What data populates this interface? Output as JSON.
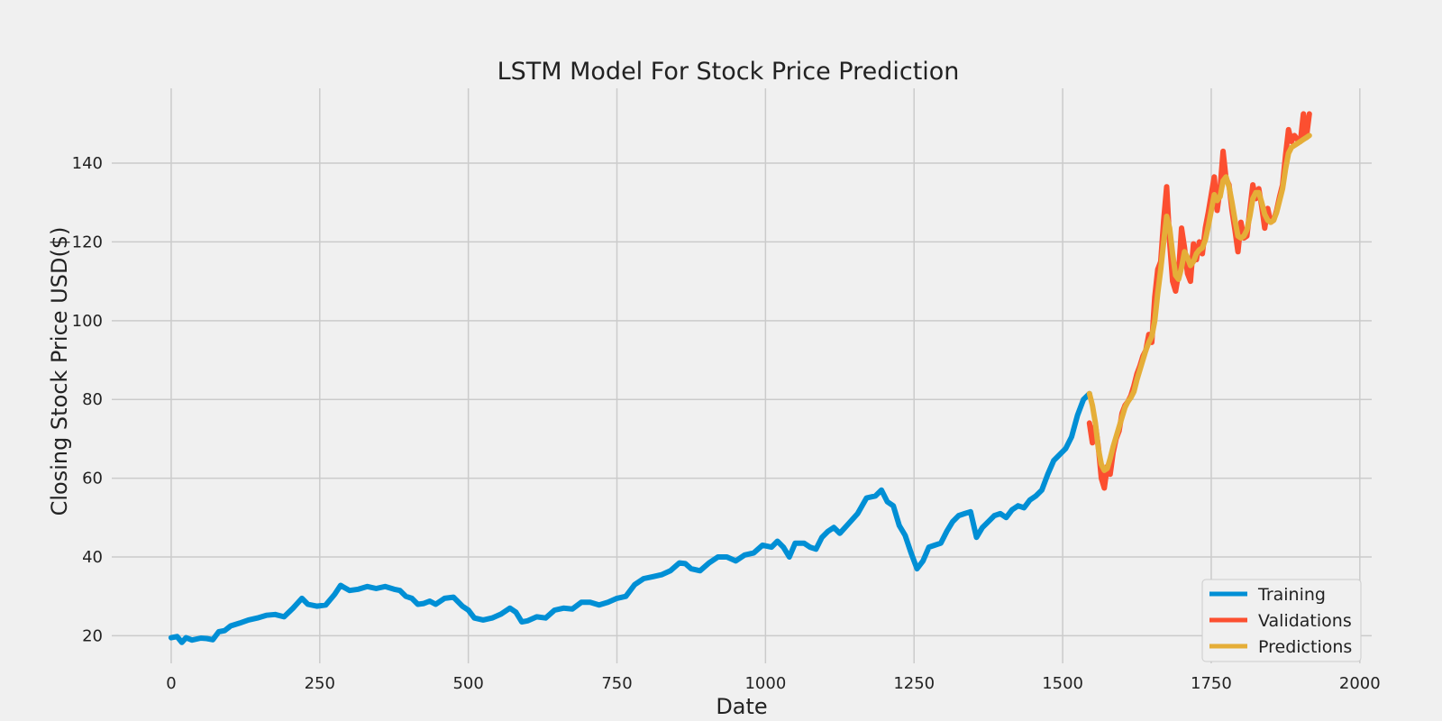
{
  "chart_data": {
    "type": "line",
    "title": "LSTM Model For Stock Price Prediction",
    "xlabel": "Date",
    "ylabel": "Closing Stock Price USD($)",
    "xlim": [
      -100,
      2020
    ],
    "ylim": [
      13,
      159
    ],
    "xticks": [
      0,
      250,
      500,
      750,
      1000,
      1250,
      1500,
      1750,
      2000
    ],
    "yticks": [
      20,
      40,
      60,
      80,
      100,
      120,
      140
    ],
    "grid": true,
    "legend_position": "lower-right",
    "series": [
      {
        "name": "Training",
        "color": "#008fd5",
        "points": [
          [
            0,
            19.5
          ],
          [
            10,
            19.8
          ],
          [
            18,
            18.3
          ],
          [
            25,
            19.5
          ],
          [
            35,
            18.9
          ],
          [
            50,
            19.4
          ],
          [
            60,
            19.3
          ],
          [
            70,
            19.0
          ],
          [
            80,
            21.0
          ],
          [
            90,
            21.3
          ],
          [
            100,
            22.5
          ],
          [
            115,
            23.2
          ],
          [
            130,
            24.0
          ],
          [
            145,
            24.5
          ],
          [
            160,
            25.2
          ],
          [
            175,
            25.4
          ],
          [
            190,
            24.8
          ],
          [
            205,
            27.0
          ],
          [
            220,
            29.5
          ],
          [
            230,
            28.0
          ],
          [
            245,
            27.5
          ],
          [
            260,
            27.8
          ],
          [
            275,
            30.5
          ],
          [
            285,
            32.8
          ],
          [
            300,
            31.5
          ],
          [
            315,
            31.8
          ],
          [
            330,
            32.5
          ],
          [
            345,
            32.0
          ],
          [
            360,
            32.5
          ],
          [
            375,
            31.8
          ],
          [
            385,
            31.5
          ],
          [
            395,
            30.0
          ],
          [
            405,
            29.5
          ],
          [
            415,
            28.0
          ],
          [
            425,
            28.2
          ],
          [
            435,
            28.8
          ],
          [
            445,
            28.0
          ],
          [
            460,
            29.5
          ],
          [
            475,
            29.8
          ],
          [
            490,
            27.5
          ],
          [
            500,
            26.5
          ],
          [
            510,
            24.5
          ],
          [
            525,
            24.0
          ],
          [
            540,
            24.5
          ],
          [
            555,
            25.5
          ],
          [
            570,
            27.0
          ],
          [
            580,
            26.0
          ],
          [
            590,
            23.5
          ],
          [
            600,
            23.8
          ],
          [
            615,
            24.8
          ],
          [
            630,
            24.5
          ],
          [
            645,
            26.5
          ],
          [
            660,
            27.0
          ],
          [
            675,
            26.8
          ],
          [
            690,
            28.5
          ],
          [
            705,
            28.5
          ],
          [
            720,
            27.8
          ],
          [
            735,
            28.5
          ],
          [
            750,
            29.5
          ],
          [
            765,
            30.0
          ],
          [
            780,
            33.0
          ],
          [
            795,
            34.5
          ],
          [
            810,
            35.0
          ],
          [
            825,
            35.5
          ],
          [
            840,
            36.5
          ],
          [
            855,
            38.5
          ],
          [
            865,
            38.3
          ],
          [
            875,
            37.0
          ],
          [
            890,
            36.5
          ],
          [
            905,
            38.5
          ],
          [
            920,
            40.0
          ],
          [
            935,
            40.0
          ],
          [
            950,
            39.0
          ],
          [
            965,
            40.5
          ],
          [
            980,
            41.0
          ],
          [
            995,
            43.0
          ],
          [
            1010,
            42.5
          ],
          [
            1020,
            44.0
          ],
          [
            1030,
            42.5
          ],
          [
            1040,
            40.0
          ],
          [
            1050,
            43.5
          ],
          [
            1065,
            43.5
          ],
          [
            1075,
            42.5
          ],
          [
            1085,
            42.0
          ],
          [
            1095,
            45.0
          ],
          [
            1105,
            46.5
          ],
          [
            1115,
            47.5
          ],
          [
            1125,
            46.0
          ],
          [
            1140,
            48.5
          ],
          [
            1155,
            51.0
          ],
          [
            1170,
            55.0
          ],
          [
            1185,
            55.5
          ],
          [
            1195,
            57.0
          ],
          [
            1205,
            54.0
          ],
          [
            1215,
            53.0
          ],
          [
            1225,
            48.0
          ],
          [
            1235,
            45.5
          ],
          [
            1245,
            41.0
          ],
          [
            1255,
            37.0
          ],
          [
            1265,
            39.0
          ],
          [
            1275,
            42.5
          ],
          [
            1285,
            43.0
          ],
          [
            1295,
            43.5
          ],
          [
            1305,
            46.5
          ],
          [
            1315,
            49.0
          ],
          [
            1325,
            50.5
          ],
          [
            1335,
            51.0
          ],
          [
            1345,
            51.5
          ],
          [
            1355,
            45.0
          ],
          [
            1365,
            47.5
          ],
          [
            1375,
            49.0
          ],
          [
            1385,
            50.5
          ],
          [
            1395,
            51.0
          ],
          [
            1405,
            50.0
          ],
          [
            1415,
            52.0
          ],
          [
            1425,
            53.0
          ],
          [
            1435,
            52.5
          ],
          [
            1445,
            54.5
          ],
          [
            1455,
            55.5
          ],
          [
            1465,
            57.0
          ],
          [
            1475,
            61.0
          ],
          [
            1485,
            64.5
          ],
          [
            1495,
            66.0
          ],
          [
            1505,
            67.5
          ],
          [
            1515,
            70.5
          ],
          [
            1525,
            76.0
          ],
          [
            1535,
            80.0
          ],
          [
            1545,
            81.5
          ]
        ]
      },
      {
        "name": "Validations",
        "color": "#fc4f30",
        "points": [
          [
            1545,
            74.0
          ],
          [
            1550,
            69.0
          ],
          [
            1555,
            73.5
          ],
          [
            1560,
            68.0
          ],
          [
            1565,
            60.0
          ],
          [
            1570,
            57.5
          ],
          [
            1575,
            63.0
          ],
          [
            1580,
            61.0
          ],
          [
            1585,
            66.5
          ],
          [
            1590,
            70.0
          ],
          [
            1595,
            72.0
          ],
          [
            1600,
            76.5
          ],
          [
            1605,
            78.5
          ],
          [
            1610,
            79.5
          ],
          [
            1615,
            81.0
          ],
          [
            1620,
            83.5
          ],
          [
            1625,
            86.5
          ],
          [
            1630,
            88.5
          ],
          [
            1635,
            91.0
          ],
          [
            1640,
            92.5
          ],
          [
            1645,
            96.5
          ],
          [
            1650,
            94.5
          ],
          [
            1655,
            106.0
          ],
          [
            1660,
            113.0
          ],
          [
            1665,
            115.0
          ],
          [
            1670,
            125.5
          ],
          [
            1675,
            134.0
          ],
          [
            1680,
            120.0
          ],
          [
            1685,
            110.0
          ],
          [
            1690,
            107.5
          ],
          [
            1695,
            112.0
          ],
          [
            1700,
            123.5
          ],
          [
            1705,
            118.5
          ],
          [
            1710,
            112.0
          ],
          [
            1715,
            110.0
          ],
          [
            1720,
            119.5
          ],
          [
            1725,
            115.5
          ],
          [
            1730,
            120.0
          ],
          [
            1735,
            117.0
          ],
          [
            1740,
            123.5
          ],
          [
            1745,
            127.5
          ],
          [
            1750,
            132.0
          ],
          [
            1755,
            136.5
          ],
          [
            1760,
            128.0
          ],
          [
            1765,
            133.5
          ],
          [
            1770,
            143.0
          ],
          [
            1775,
            136.0
          ],
          [
            1780,
            134.5
          ],
          [
            1785,
            128.0
          ],
          [
            1790,
            123.0
          ],
          [
            1795,
            117.5
          ],
          [
            1800,
            125.0
          ],
          [
            1805,
            121.0
          ],
          [
            1810,
            121.5
          ],
          [
            1815,
            128.0
          ],
          [
            1820,
            134.5
          ],
          [
            1825,
            131.0
          ],
          [
            1830,
            133.5
          ],
          [
            1835,
            129.0
          ],
          [
            1840,
            123.5
          ],
          [
            1845,
            128.5
          ],
          [
            1850,
            125.0
          ],
          [
            1855,
            125.5
          ],
          [
            1860,
            128.0
          ],
          [
            1865,
            131.5
          ],
          [
            1870,
            134.5
          ],
          [
            1875,
            142.0
          ],
          [
            1880,
            148.5
          ],
          [
            1885,
            145.5
          ],
          [
            1890,
            147.0
          ],
          [
            1895,
            146.0
          ],
          [
            1900,
            145.5
          ],
          [
            1905,
            152.5
          ],
          [
            1910,
            146.5
          ],
          [
            1915,
            152.5
          ]
        ]
      },
      {
        "name": "Predictions",
        "color": "#e5ae38",
        "points": [
          [
            1545,
            81.5
          ],
          [
            1550,
            78.5
          ],
          [
            1555,
            74.0
          ],
          [
            1560,
            67.5
          ],
          [
            1565,
            63.5
          ],
          [
            1570,
            62.0
          ],
          [
            1575,
            62.5
          ],
          [
            1580,
            65.0
          ],
          [
            1585,
            68.0
          ],
          [
            1590,
            70.5
          ],
          [
            1595,
            73.0
          ],
          [
            1600,
            75.5
          ],
          [
            1605,
            78.0
          ],
          [
            1610,
            79.5
          ],
          [
            1615,
            80.5
          ],
          [
            1620,
            82.0
          ],
          [
            1625,
            85.0
          ],
          [
            1630,
            87.5
          ],
          [
            1635,
            90.0
          ],
          [
            1640,
            92.5
          ],
          [
            1645,
            94.5
          ],
          [
            1650,
            96.0
          ],
          [
            1655,
            100.0
          ],
          [
            1660,
            107.0
          ],
          [
            1665,
            113.0
          ],
          [
            1670,
            120.0
          ],
          [
            1675,
            126.5
          ],
          [
            1680,
            123.5
          ],
          [
            1685,
            117.0
          ],
          [
            1690,
            111.5
          ],
          [
            1695,
            110.5
          ],
          [
            1700,
            113.5
          ],
          [
            1705,
            117.5
          ],
          [
            1710,
            116.0
          ],
          [
            1715,
            114.0
          ],
          [
            1720,
            115.0
          ],
          [
            1725,
            117.0
          ],
          [
            1730,
            118.0
          ],
          [
            1735,
            118.5
          ],
          [
            1740,
            120.5
          ],
          [
            1745,
            124.0
          ],
          [
            1750,
            128.0
          ],
          [
            1755,
            132.0
          ],
          [
            1760,
            130.5
          ],
          [
            1765,
            131.5
          ],
          [
            1770,
            135.5
          ],
          [
            1775,
            136.5
          ],
          [
            1780,
            134.0
          ],
          [
            1785,
            130.0
          ],
          [
            1790,
            125.5
          ],
          [
            1795,
            121.5
          ],
          [
            1800,
            121.0
          ],
          [
            1805,
            121.5
          ],
          [
            1810,
            123.0
          ],
          [
            1815,
            126.5
          ],
          [
            1820,
            131.0
          ],
          [
            1825,
            132.5
          ],
          [
            1830,
            132.5
          ],
          [
            1835,
            130.0
          ],
          [
            1840,
            127.0
          ],
          [
            1845,
            125.5
          ],
          [
            1850,
            125.0
          ],
          [
            1855,
            125.5
          ],
          [
            1860,
            127.5
          ],
          [
            1865,
            130.5
          ],
          [
            1870,
            133.5
          ],
          [
            1875,
            138.5
          ],
          [
            1880,
            142.5
          ],
          [
            1885,
            144.0
          ],
          [
            1890,
            144.5
          ],
          [
            1895,
            145.0
          ],
          [
            1900,
            145.5
          ],
          [
            1905,
            146.0
          ],
          [
            1910,
            146.5
          ],
          [
            1915,
            147.0
          ]
        ]
      }
    ]
  }
}
